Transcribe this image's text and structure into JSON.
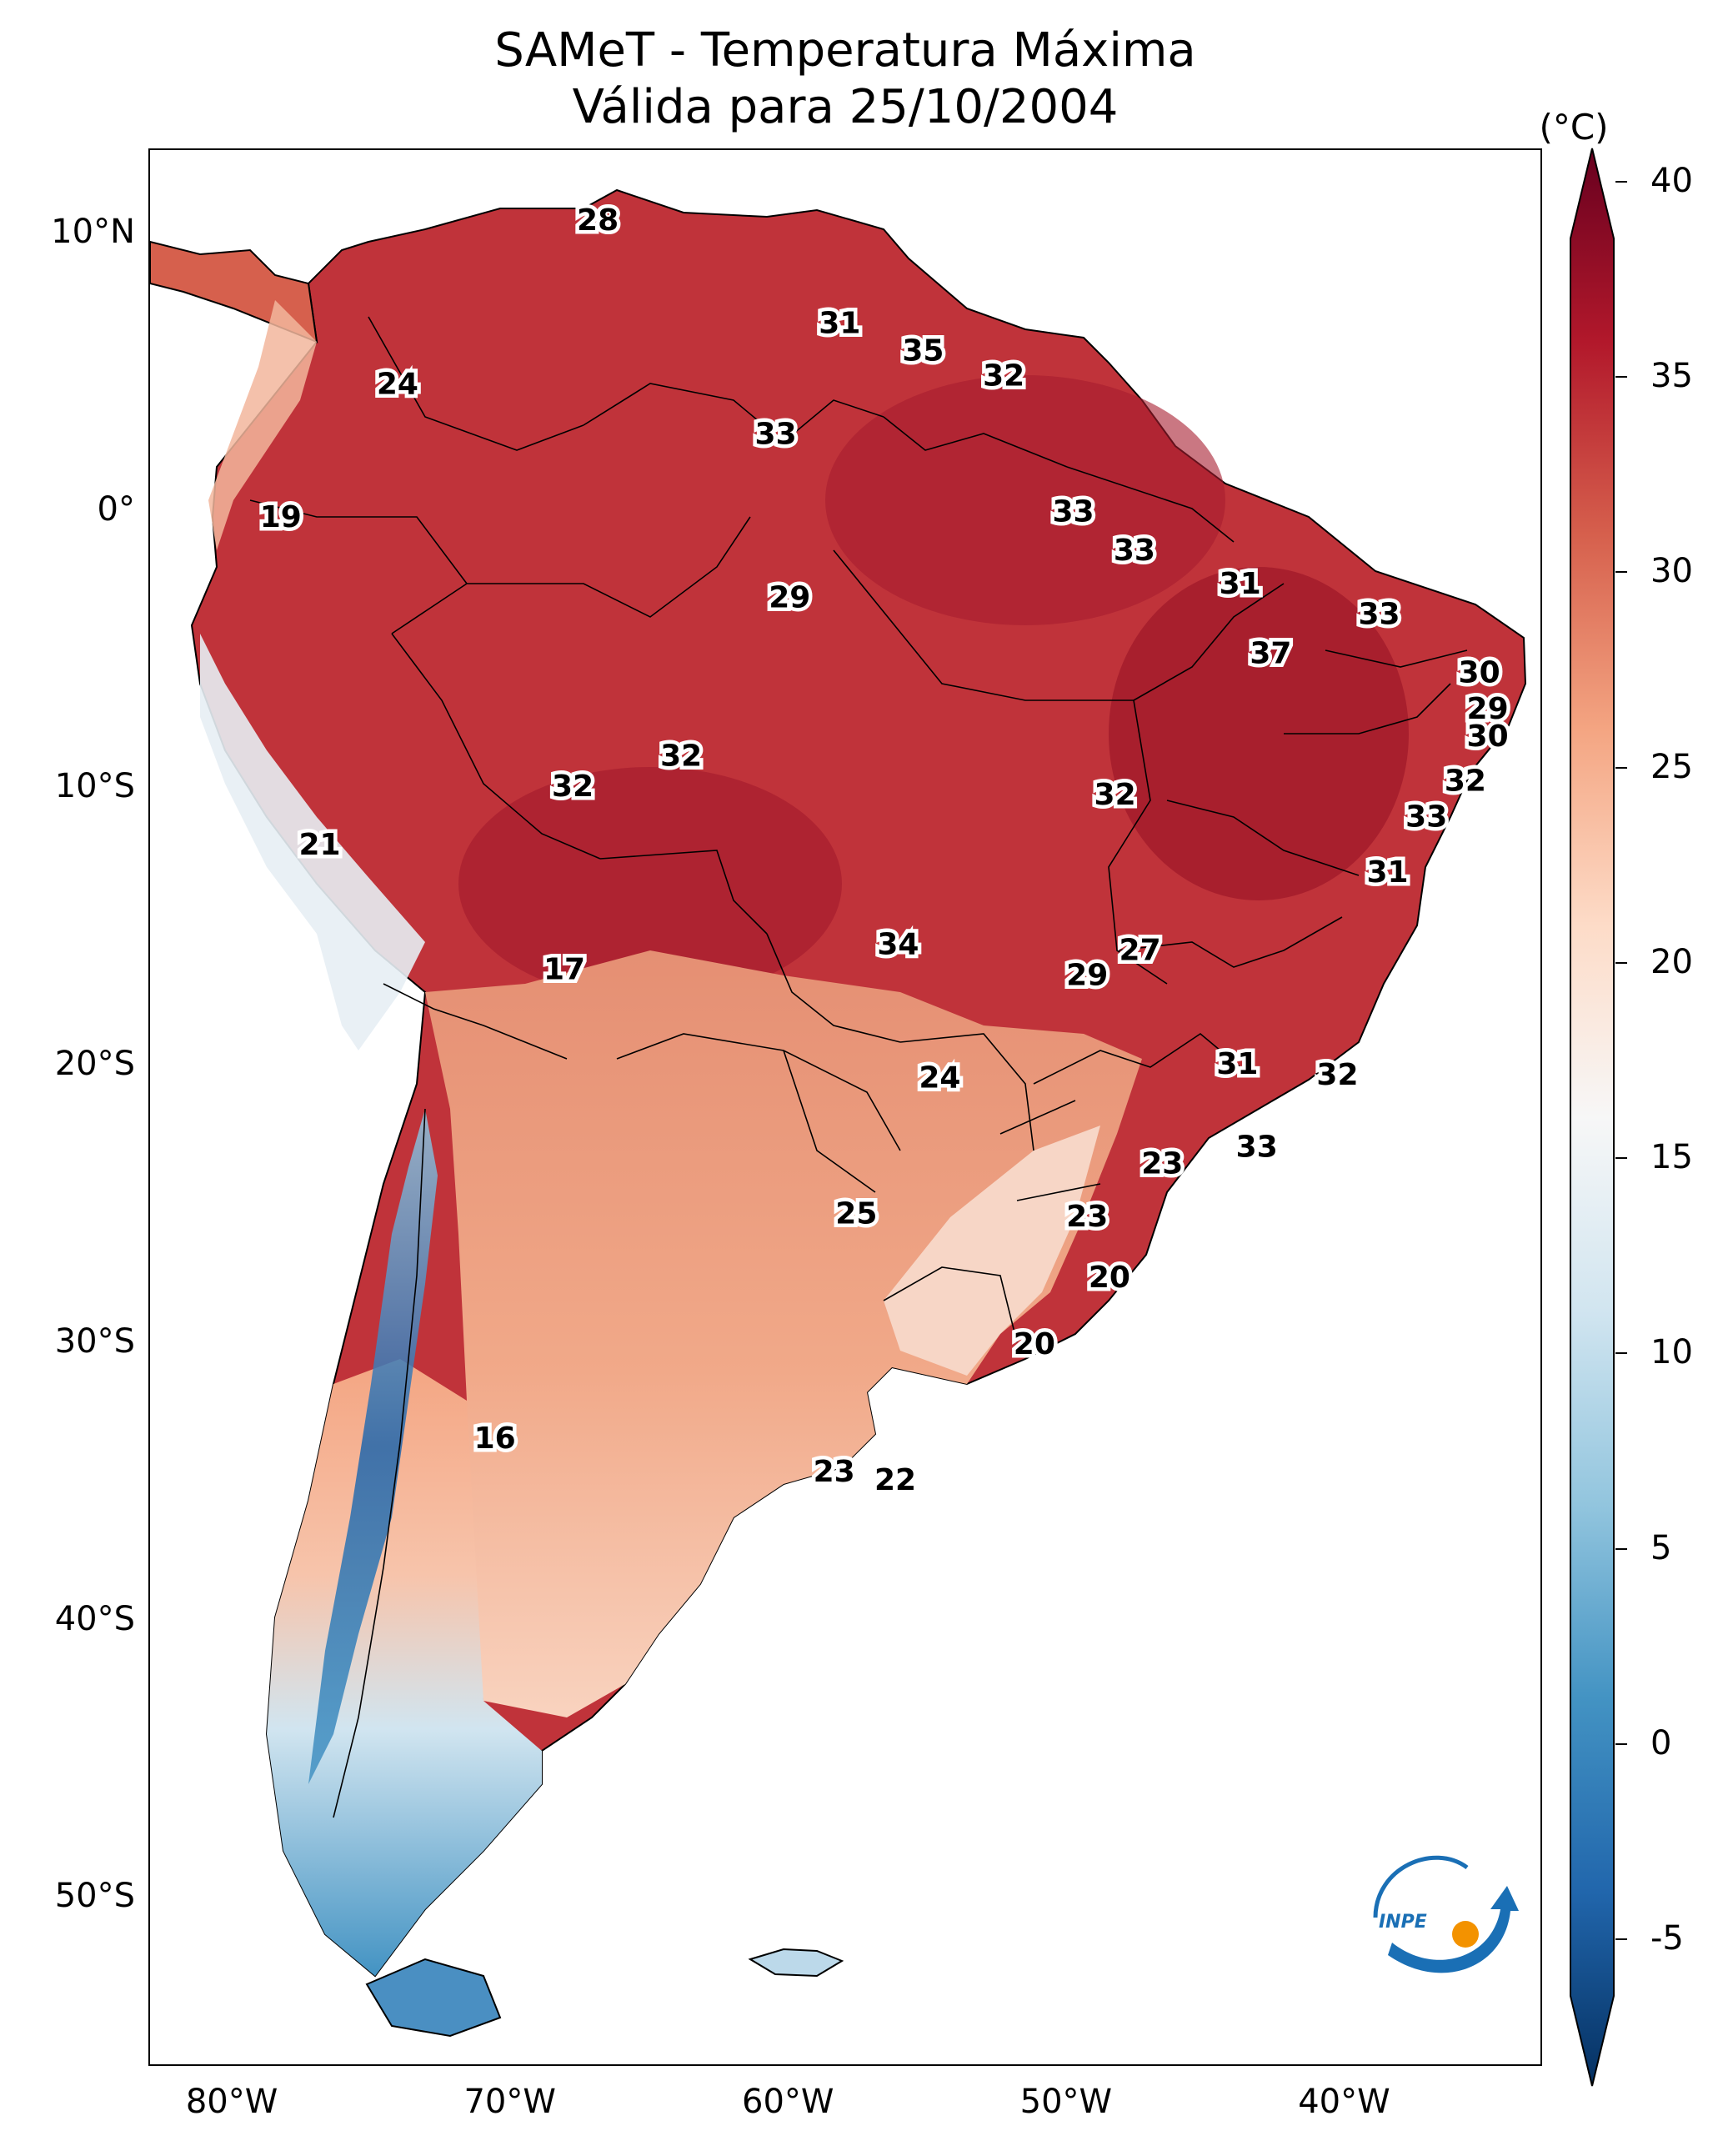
{
  "title": {
    "line1": "SAMeT - Temperatura Máxima",
    "line2": "Válida para 25/10/2004"
  },
  "map": {
    "projection": "PlateCarree",
    "lon_range": [
      -83,
      -33
    ],
    "lat_range": [
      -56,
      13
    ],
    "lat_ticks": [
      "10°N",
      "0°",
      "10°S",
      "20°S",
      "30°S",
      "40°S",
      "50°S"
    ],
    "lon_ticks": [
      "80°W",
      "70°W",
      "60°W",
      "50°W",
      "40°W"
    ],
    "land_mask_color": "#ffffff"
  },
  "colorbar": {
    "unit": "(°C)",
    "ticks": [
      "40",
      "35",
      "30",
      "25",
      "20",
      "15",
      "10",
      "5",
      "0",
      "-5"
    ],
    "range": [
      -5,
      40
    ],
    "colormap": "RdBu_r",
    "colors": [
      "#053061",
      "#2166ac",
      "#4393c3",
      "#92c5de",
      "#d1e5f0",
      "#f7f7f7",
      "#fddbc7",
      "#f4a582",
      "#d6604d",
      "#b2182b",
      "#67001f"
    ]
  },
  "logo": {
    "text": "INPE",
    "colors": {
      "blue": "#1a6fb5",
      "orange": "#f39200"
    }
  },
  "station_values": [
    {
      "lon": -66.9,
      "lat": 10.5,
      "label": "28"
    },
    {
      "lon": -74.1,
      "lat": 4.6,
      "label": "24"
    },
    {
      "lon": -78.3,
      "lat": -0.2,
      "label": "19"
    },
    {
      "lon": -58.2,
      "lat": 6.8,
      "label": "31"
    },
    {
      "lon": -55.2,
      "lat": 5.8,
      "label": "35"
    },
    {
      "lon": -52.3,
      "lat": 4.9,
      "label": "32"
    },
    {
      "lon": -60.5,
      "lat": 2.8,
      "label": "33"
    },
    {
      "lon": -49.8,
      "lat": 0.0,
      "label": "33"
    },
    {
      "lon": -47.6,
      "lat": -1.4,
      "label": "33"
    },
    {
      "lon": -60.0,
      "lat": -3.1,
      "label": "29"
    },
    {
      "lon": -43.8,
      "lat": -2.6,
      "label": "31"
    },
    {
      "lon": -38.8,
      "lat": -3.7,
      "label": "33"
    },
    {
      "lon": -42.7,
      "lat": -5.1,
      "label": "37"
    },
    {
      "lon": -35.2,
      "lat": -5.8,
      "label": "30"
    },
    {
      "lon": -34.9,
      "lat": -7.1,
      "label": "29"
    },
    {
      "lon": -34.9,
      "lat": -8.1,
      "label": "30"
    },
    {
      "lon": -35.7,
      "lat": -9.7,
      "label": "32"
    },
    {
      "lon": -37.1,
      "lat": -11.0,
      "label": "33"
    },
    {
      "lon": -38.5,
      "lat": -13.0,
      "label": "31"
    },
    {
      "lon": -63.9,
      "lat": -8.8,
      "label": "32"
    },
    {
      "lon": -67.8,
      "lat": -9.9,
      "label": "32"
    },
    {
      "lon": -48.3,
      "lat": -10.2,
      "label": "32"
    },
    {
      "lon": -76.9,
      "lat": -12.0,
      "label": "21"
    },
    {
      "lon": -68.1,
      "lat": -16.5,
      "label": "17"
    },
    {
      "lon": -56.1,
      "lat": -15.6,
      "label": "34"
    },
    {
      "lon": -47.4,
      "lat": -15.8,
      "label": "27"
    },
    {
      "lon": -49.3,
      "lat": -16.7,
      "label": "29"
    },
    {
      "lon": -54.6,
      "lat": -20.4,
      "label": "24"
    },
    {
      "lon": -43.9,
      "lat": -19.9,
      "label": "31"
    },
    {
      "lon": -40.3,
      "lat": -20.3,
      "label": "32"
    },
    {
      "lon": -46.6,
      "lat": -23.5,
      "label": "23"
    },
    {
      "lon": -43.2,
      "lat": -22.9,
      "label": "33"
    },
    {
      "lon": -57.6,
      "lat": -25.3,
      "label": "25"
    },
    {
      "lon": -49.3,
      "lat": -25.4,
      "label": "23"
    },
    {
      "lon": -48.5,
      "lat": -27.6,
      "label": "20"
    },
    {
      "lon": -51.2,
      "lat": -30.0,
      "label": "20"
    },
    {
      "lon": -70.6,
      "lat": -33.4,
      "label": "16"
    },
    {
      "lon": -58.4,
      "lat": -34.6,
      "label": "23"
    },
    {
      "lon": -56.2,
      "lat": -34.9,
      "label": "22"
    }
  ]
}
